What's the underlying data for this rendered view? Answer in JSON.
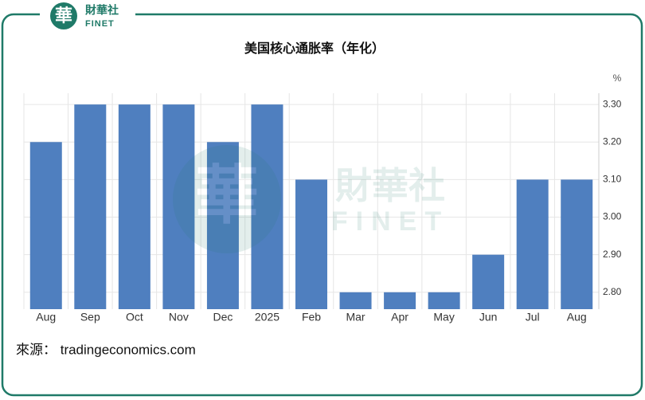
{
  "logo": {
    "mark": "華",
    "name": "財華社",
    "latin": "FINET"
  },
  "source": "來源： tradingeconomics.com",
  "chart_data": {
    "type": "bar",
    "title": "美国核心通胀率（年化）",
    "unit": "%",
    "categories": [
      "Aug",
      "Sep",
      "Oct",
      "Nov",
      "Dec",
      "2025",
      "Feb",
      "Mar",
      "Apr",
      "May",
      "Jun",
      "Jul",
      "Aug"
    ],
    "values": [
      3.2,
      3.3,
      3.3,
      3.3,
      3.2,
      3.3,
      3.1,
      2.8,
      2.8,
      2.8,
      2.9,
      3.1,
      3.1
    ],
    "color": "#4f7fbf",
    "ylim": [
      2.755,
      3.33
    ],
    "yticks": [
      {
        "value": 2.8,
        "label": "2.80"
      },
      {
        "value": 2.9,
        "label": "2.90"
      },
      {
        "value": 3.0,
        "label": "3.00"
      },
      {
        "value": 3.1,
        "label": "3.10"
      },
      {
        "value": 3.2,
        "label": "3.20"
      },
      {
        "value": 3.3,
        "label": "3.30"
      }
    ],
    "grid": true
  }
}
